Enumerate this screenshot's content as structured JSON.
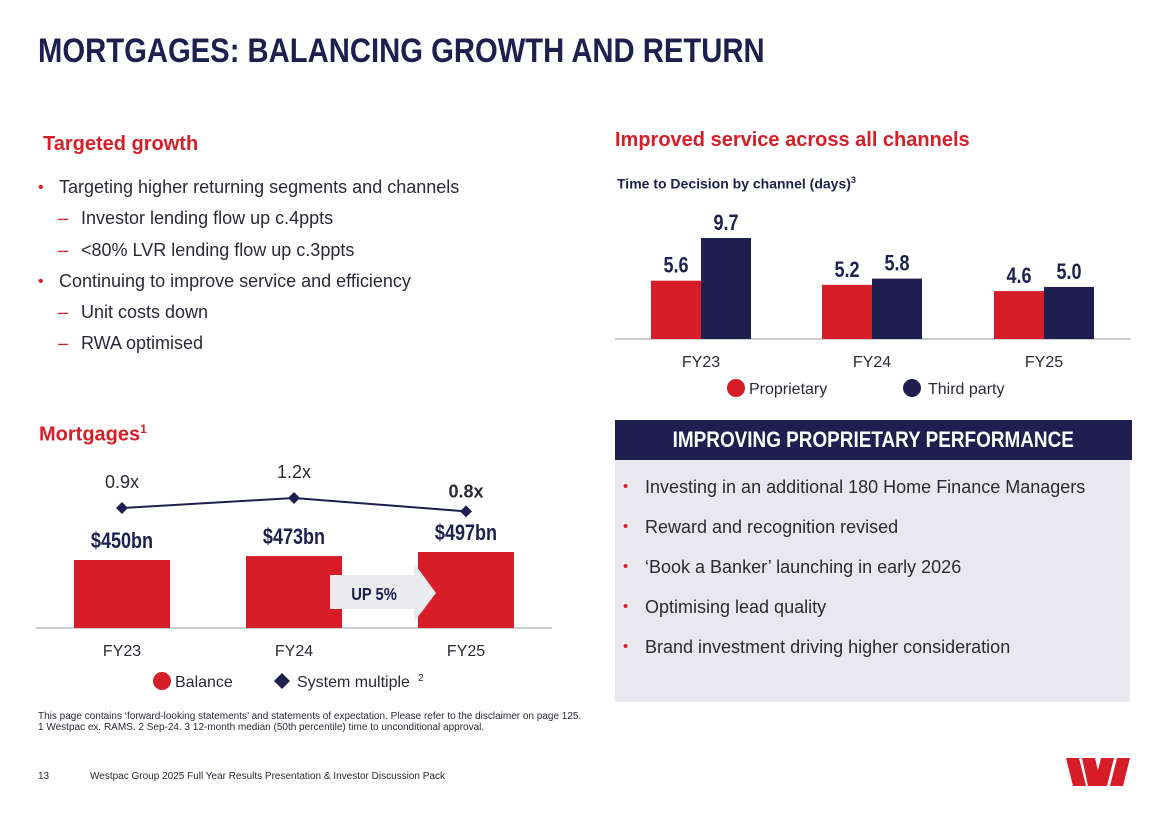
{
  "page": {
    "title": "MORTGAGES: BALANCING GROWTH AND RETURN",
    "page_number": "13",
    "deck_title": "Westpac Group 2025 Full Year Results Presentation & Investor Discussion Pack",
    "footnote_1": "This page contains ‘forward-looking statements’ and statements of expectation. Please refer to the disclaimer on page 125.",
    "footnote_2": "1 Westpac ex. RAMS. 2 Sep-24. 3 12-month median (50th percentile) time to unconditional approval.",
    "logo_icon": "westpac-w-logo",
    "colors": {
      "red": "#d71e28",
      "navy": "#1f1f4f",
      "panel": "#e8e8ee"
    }
  },
  "targeted_growth": {
    "heading": "Targeted growth",
    "bullets": [
      "Targeting higher returning segments and channels",
      "Investor lending flow up c.4ppts",
      "<80% LVR lending flow up c.3ppts",
      "Continuing to improve service and efficiency",
      "Unit costs down",
      "RWA optimised"
    ]
  },
  "service": {
    "heading": "Improved service across all channels",
    "chart_title": "Time to Decision by channel (days)",
    "chart_title_sup": "3"
  },
  "mortgages": {
    "heading": "Mortgages",
    "heading_sup": "1",
    "callout": "UP 5%",
    "legend_balance": "Balance",
    "legend_multiple": "System multiple",
    "legend_multiple_sup": "2"
  },
  "panel": {
    "heading": "IMPROVING PROPRIETARY PERFORMANCE",
    "bullets": [
      "Investing in an additional 180 Home Finance Managers",
      "Reward and recognition revised",
      "‘Book a Banker’ launching in early 2026",
      "Optimising lead quality",
      "Brand investment driving higher consideration"
    ]
  },
  "chart_data": [
    {
      "type": "bar",
      "title": "Time to Decision by channel (days)",
      "categories": [
        "FY23",
        "FY24",
        "FY25"
      ],
      "series": [
        {
          "name": "Proprietary",
          "values": [
            5.6,
            5.2,
            4.6
          ],
          "labels": [
            "5.6",
            "5.2",
            "4.6"
          ],
          "color": "#d71e28"
        },
        {
          "name": "Third party",
          "values": [
            9.7,
            5.8,
            5.0
          ],
          "labels": [
            "9.7",
            "5.8",
            "5.0"
          ],
          "color": "#1f1f4f"
        }
      ],
      "ylim": [
        0,
        9.7
      ],
      "grid": false,
      "legend": "bottom"
    },
    {
      "type": "bar",
      "title": "Mortgages",
      "categories": [
        "FY23",
        "FY24",
        "FY25"
      ],
      "series": [
        {
          "name": "Balance",
          "values": [
            450,
            473,
            497
          ],
          "labels": [
            "$450bn",
            "$473bn",
            "$497bn"
          ],
          "color": "#d71e28"
        },
        {
          "name": "System multiple",
          "type": "line",
          "values": [
            0.9,
            1.2,
            0.8
          ],
          "labels": [
            "0.9x",
            "1.2x",
            "0.8x"
          ],
          "color": "#1f1f4f",
          "marker": "diamond"
        }
      ],
      "grid": false,
      "legend": "bottom"
    }
  ]
}
